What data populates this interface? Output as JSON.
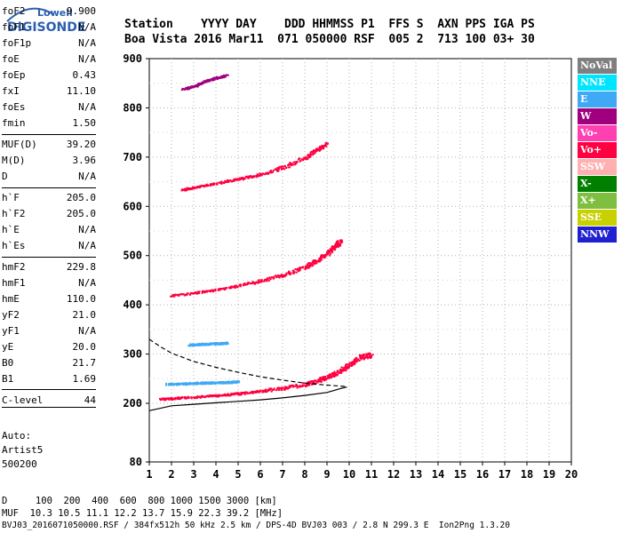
{
  "logo": {
    "top": "Lowell",
    "bottom": "DIGISONDE"
  },
  "header": {
    "row1": "Station    YYYY DAY    DDD HHMMSS P1  FFS S  AXN PPS IGA PS",
    "row2": "Boa Vista 2016 Mar11  071 050000 RSF  005 2  713 100 03+ 30"
  },
  "params": [
    {
      "name": "foF2",
      "value": "9.900"
    },
    {
      "name": "foF1",
      "value": "N/A"
    },
    {
      "name": "foF1p",
      "value": "N/A"
    },
    {
      "name": "foE",
      "value": "N/A"
    },
    {
      "name": "foEp",
      "value": "0.43"
    },
    {
      "name": "fxI",
      "value": "11.10"
    },
    {
      "name": "foEs",
      "value": "N/A"
    },
    {
      "name": "fmin",
      "value": "1.50"
    },
    {
      "name": "MUF(D)",
      "value": "39.20"
    },
    {
      "name": "M(D)",
      "value": "3.96"
    },
    {
      "name": "D",
      "value": "N/A"
    },
    {
      "name": "h`F",
      "value": "205.0"
    },
    {
      "name": "h`F2",
      "value": "205.0"
    },
    {
      "name": "h`E",
      "value": "N/A"
    },
    {
      "name": "h`Es",
      "value": "N/A"
    },
    {
      "name": "hmF2",
      "value": "229.8"
    },
    {
      "name": "hmF1",
      "value": "N/A"
    },
    {
      "name": "hmE",
      "value": "110.0"
    },
    {
      "name": "yF2",
      "value": "21.0"
    },
    {
      "name": "yF1",
      "value": "N/A"
    },
    {
      "name": "yE",
      "value": "20.0"
    },
    {
      "name": "B0",
      "value": "21.7"
    },
    {
      "name": "B1",
      "value": "1.69"
    },
    {
      "name": "C-level",
      "value": "44"
    }
  ],
  "auto": {
    "line1": "Auto:",
    "line2": "Artist5",
    "line3": "500200"
  },
  "legend": [
    {
      "label": "NoVal",
      "bg": "#7f7f7f",
      "fg": "#ffffff"
    },
    {
      "label": "NNE",
      "bg": "#00e5ff",
      "fg": "#ffffff"
    },
    {
      "label": "E",
      "bg": "#3fa9f5",
      "fg": "#ffffff"
    },
    {
      "label": "W",
      "bg": "#a0007f",
      "fg": "#ffffff"
    },
    {
      "label": "Vo-",
      "bg": "#ff40b0",
      "fg": "#ffffff"
    },
    {
      "label": "Vo+",
      "bg": "#ff0040",
      "fg": "#ffffff"
    },
    {
      "label": "SSW",
      "bg": "#ffb0b0",
      "fg": "#ffffff"
    },
    {
      "label": "X-",
      "bg": "#007f00",
      "fg": "#ffffff"
    },
    {
      "label": "X+",
      "bg": "#7fbf3f",
      "fg": "#ffffff"
    },
    {
      "label": "SSE",
      "bg": "#c8d000",
      "fg": "#ffffff"
    },
    {
      "label": "NNW",
      "bg": "#2020d0",
      "fg": "#ffffff"
    }
  ],
  "footer": {
    "line1": "D     100  200  400  600  800 1000 1500 3000 [km]",
    "line2": "MUF  10.3 10.5 11.1 12.2 13.7 15.9 22.3 39.2 [MHz]",
    "line3": "BVJ03_2016071050000.RSF / 384fx512h 50 kHz 2.5 km / DPS-4D BVJ03 003 / 2.8 N 299.3 E  Ion2Png 1.3.20"
  },
  "chart_data": {
    "type": "scatter",
    "x_axis": {
      "range": [
        1,
        20
      ],
      "ticks": [
        "1",
        "2",
        "3",
        "4",
        "5",
        "6",
        "7",
        "8",
        "9",
        "10",
        "11",
        "12",
        "13",
        "14",
        "15",
        "16",
        "17",
        "18",
        "19",
        "20"
      ]
    },
    "y_axis": {
      "range": [
        80,
        900
      ],
      "ticks": [
        "80",
        "200",
        "300",
        "400",
        "500",
        "600",
        "700",
        "800",
        "900"
      ]
    },
    "grid": true,
    "legend_placement": "right",
    "traces": [
      {
        "series": "Vo+",
        "color": "#ff0040",
        "points": [
          [
            1.5,
            210
          ],
          [
            2,
            211
          ],
          [
            3,
            214
          ],
          [
            4,
            217
          ],
          [
            5,
            221
          ],
          [
            6,
            226
          ],
          [
            7,
            232
          ],
          [
            8,
            240
          ],
          [
            8.5,
            246
          ],
          [
            9,
            255
          ],
          [
            9.5,
            265
          ],
          [
            10,
            280
          ],
          [
            10.5,
            295
          ],
          [
            11,
            300
          ]
        ]
      },
      {
        "series": "Vo+",
        "color": "#ff0040",
        "points": [
          [
            2,
            420
          ],
          [
            3,
            425
          ],
          [
            4,
            432
          ],
          [
            5,
            440
          ],
          [
            6,
            450
          ],
          [
            7,
            462
          ],
          [
            8,
            478
          ],
          [
            8.5,
            490
          ],
          [
            9,
            505
          ],
          [
            9.3,
            520
          ],
          [
            9.6,
            530
          ]
        ]
      },
      {
        "series": "Vo+",
        "color": "#ff0040",
        "points": [
          [
            2.5,
            635
          ],
          [
            3,
            640
          ],
          [
            4,
            648
          ],
          [
            5,
            657
          ],
          [
            6,
            666
          ],
          [
            7,
            680
          ],
          [
            8,
            700
          ],
          [
            8.5,
            715
          ],
          [
            9,
            730
          ]
        ]
      },
      {
        "series": "W",
        "color": "#a0007f",
        "points": [
          [
            2.5,
            840
          ],
          [
            3,
            845
          ],
          [
            3.5,
            855
          ],
          [
            4,
            862
          ],
          [
            4.5,
            868
          ]
        ]
      },
      {
        "series": "E",
        "color": "#3fa9f5",
        "points": [
          [
            1.8,
            240
          ],
          [
            2.5,
            241
          ],
          [
            3,
            242
          ],
          [
            3.5,
            243
          ],
          [
            4,
            243
          ],
          [
            4.5,
            244
          ],
          [
            5,
            245
          ]
        ]
      },
      {
        "series": "E",
        "color": "#3fa9f5",
        "points": [
          [
            2.8,
            320
          ],
          [
            3.2,
            321
          ],
          [
            3.7,
            322
          ],
          [
            4.2,
            323
          ],
          [
            4.5,
            324
          ]
        ]
      }
    ],
    "profile_curves": [
      {
        "style": "solid",
        "points": [
          [
            1,
            185
          ],
          [
            2,
            195
          ],
          [
            3,
            198
          ],
          [
            4,
            201
          ],
          [
            5,
            204
          ],
          [
            6,
            207
          ],
          [
            7,
            211
          ],
          [
            8,
            216
          ],
          [
            9,
            222
          ],
          [
            9.6,
            230
          ],
          [
            9.9,
            233
          ]
        ]
      },
      {
        "style": "dashed",
        "points": [
          [
            1,
            330
          ],
          [
            1.5,
            315
          ],
          [
            2,
            302
          ],
          [
            3,
            285
          ],
          [
            4,
            273
          ],
          [
            5,
            263
          ],
          [
            6,
            254
          ],
          [
            7,
            247
          ],
          [
            8,
            241
          ],
          [
            9,
            237
          ],
          [
            9.9,
            234
          ]
        ]
      }
    ]
  }
}
